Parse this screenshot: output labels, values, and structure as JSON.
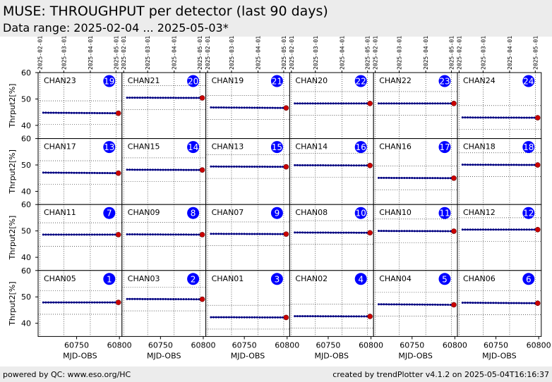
{
  "header": {
    "title": "MUSE: THROUGHPUT per detector (last 90 days)",
    "subtitle": "Data range: 2025-02-04 ... 2025-05-03*"
  },
  "footer": {
    "left": "powered by QC: www.eso.org/HC",
    "right": "created by trendPlotter v4.1.2 on 2025-05-04T16:16:37"
  },
  "colors": {
    "header_bg": "#ececec",
    "data_line": "#000080",
    "last_point": "#cc0000",
    "badge": "#0000ff",
    "badge_text": "#ffffff"
  },
  "chart_data": {
    "type": "scatter",
    "xlabel": "MJD-OBS",
    "ylabel": "Thrput2[%]",
    "x_ticks": [
      "60750",
      "60800"
    ],
    "y_ticks": [
      "40",
      "50",
      "60"
    ],
    "date_ticks": [
      "2025-02-01",
      "2025-03-01",
      "2025-04-01",
      "2025-05-01"
    ],
    "xlim": [
      60705,
      60803
    ],
    "ylim": [
      35,
      60
    ],
    "x_start": 60711,
    "x_end": 60798,
    "panels": [
      {
        "name": "CHAN23",
        "index": "19",
        "value": 44.8,
        "last": 44.6
      },
      {
        "name": "CHAN21",
        "index": "20",
        "value": 50.5,
        "last": 50.4
      },
      {
        "name": "CHAN19",
        "index": "21",
        "value": 46.8,
        "last": 46.6
      },
      {
        "name": "CHAN20",
        "index": "22",
        "value": 48.3,
        "last": 48.3
      },
      {
        "name": "CHAN22",
        "index": "23",
        "value": 48.3,
        "last": 48.3
      },
      {
        "name": "CHAN24",
        "index": "24",
        "value": 43.0,
        "last": 42.9
      },
      {
        "name": "CHAN17",
        "index": "13",
        "value": 47.1,
        "last": 46.9
      },
      {
        "name": "CHAN15",
        "index": "14",
        "value": 48.2,
        "last": 48.1
      },
      {
        "name": "CHAN13",
        "index": "15",
        "value": 49.4,
        "last": 49.3
      },
      {
        "name": "CHAN14",
        "index": "16",
        "value": 49.9,
        "last": 49.8
      },
      {
        "name": "CHAN16",
        "index": "17",
        "value": 45.1,
        "last": 45.0
      },
      {
        "name": "CHAN18",
        "index": "18",
        "value": 50.1,
        "last": 50.0
      },
      {
        "name": "CHAN11",
        "index": "7",
        "value": 48.6,
        "last": 48.6
      },
      {
        "name": "CHAN09",
        "index": "8",
        "value": 48.7,
        "last": 48.6
      },
      {
        "name": "CHAN07",
        "index": "9",
        "value": 48.9,
        "last": 48.8
      },
      {
        "name": "CHAN08",
        "index": "10",
        "value": 49.4,
        "last": 49.3
      },
      {
        "name": "CHAN10",
        "index": "11",
        "value": 50.0,
        "last": 49.9
      },
      {
        "name": "CHAN12",
        "index": "12",
        "value": 50.5,
        "last": 50.5
      },
      {
        "name": "CHAN05",
        "index": "1",
        "value": 47.9,
        "last": 47.9
      },
      {
        "name": "CHAN03",
        "index": "2",
        "value": 49.2,
        "last": 49.1
      },
      {
        "name": "CHAN01",
        "index": "3",
        "value": 42.3,
        "last": 42.2
      },
      {
        "name": "CHAN02",
        "index": "4",
        "value": 42.7,
        "last": 42.6
      },
      {
        "name": "CHAN04",
        "index": "5",
        "value": 47.2,
        "last": 47.0
      },
      {
        "name": "CHAN06",
        "index": "6",
        "value": 47.8,
        "last": 47.6
      }
    ]
  }
}
